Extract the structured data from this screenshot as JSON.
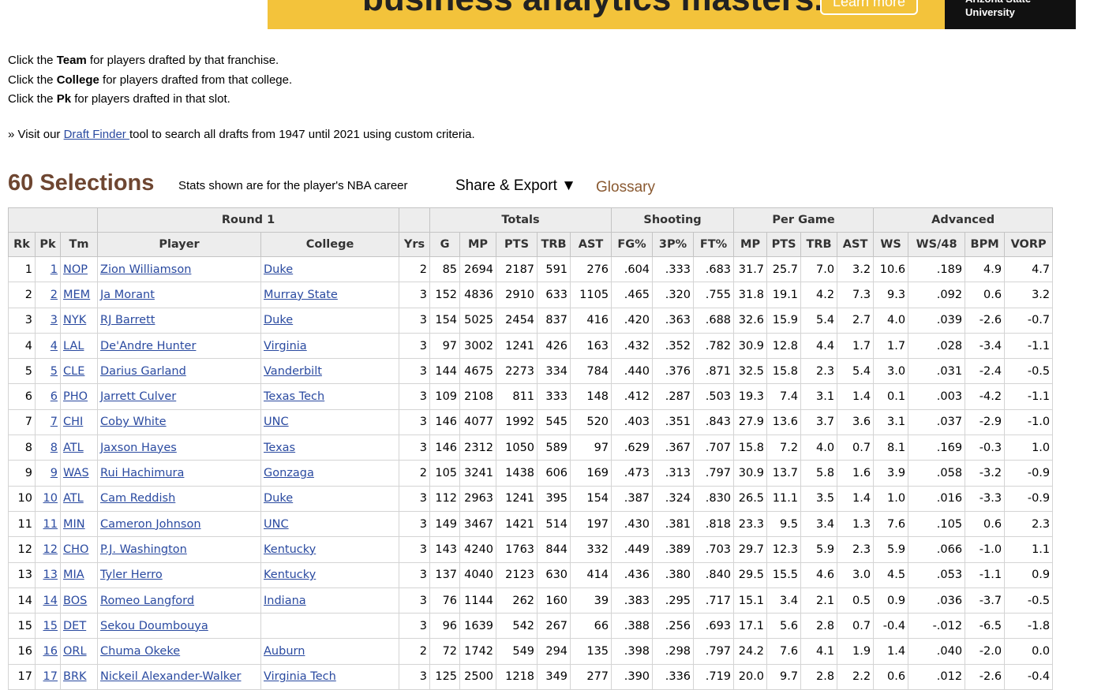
{
  "banner": {
    "headline": "business analytics masters.",
    "button": "Learn more",
    "university": "Arizona State University"
  },
  "instructions": [
    {
      "before": "Click the ",
      "bold": "Team",
      "after": " for players drafted by that franchise."
    },
    {
      "before": "Click the ",
      "bold": "College",
      "after": " for players drafted from that college."
    },
    {
      "before": "Click the ",
      "bold": "Pk",
      "after": " for players drafted in that slot."
    }
  ],
  "visit": {
    "prefix": "» Visit our ",
    "link": "Draft Finder ",
    "suffix": "tool to search all drafts from 1947 until 2021 using custom criteria."
  },
  "section": {
    "title": "60 Selections",
    "note": "Stats shown are for the player's NBA career",
    "share": "Share & Export ▼",
    "glossary": "Glossary"
  },
  "table": {
    "groups": [
      "Round 1",
      "Totals",
      "Shooting",
      "Per Game",
      "Advanced"
    ],
    "columns": [
      "Rk",
      "Pk",
      "Tm",
      "Player",
      "College",
      "Yrs",
      "G",
      "MP",
      "PTS",
      "TRB",
      "AST",
      "FG%",
      "3P%",
      "FT%",
      "MP",
      "PTS",
      "TRB",
      "AST",
      "WS",
      "WS/48",
      "BPM",
      "VORP"
    ],
    "rows": [
      [
        "1",
        "1",
        "NOP",
        "Zion Williamson",
        "Duke",
        "2",
        "85",
        "2694",
        "2187",
        "591",
        "276",
        ".604",
        ".333",
        ".683",
        "31.7",
        "25.7",
        "7.0",
        "3.2",
        "10.6",
        ".189",
        "4.9",
        "4.7"
      ],
      [
        "2",
        "2",
        "MEM",
        "Ja Morant",
        "Murray State",
        "3",
        "152",
        "4836",
        "2910",
        "633",
        "1105",
        ".465",
        ".320",
        ".755",
        "31.8",
        "19.1",
        "4.2",
        "7.3",
        "9.3",
        ".092",
        "0.6",
        "3.2"
      ],
      [
        "3",
        "3",
        "NYK",
        "RJ Barrett",
        "Duke",
        "3",
        "154",
        "5025",
        "2454",
        "837",
        "416",
        ".420",
        ".363",
        ".688",
        "32.6",
        "15.9",
        "5.4",
        "2.7",
        "4.0",
        ".039",
        "-2.6",
        "-0.7"
      ],
      [
        "4",
        "4",
        "LAL",
        "De'Andre Hunter",
        "Virginia",
        "3",
        "97",
        "3002",
        "1241",
        "426",
        "163",
        ".432",
        ".352",
        ".782",
        "30.9",
        "12.8",
        "4.4",
        "1.7",
        "1.7",
        ".028",
        "-3.4",
        "-1.1"
      ],
      [
        "5",
        "5",
        "CLE",
        "Darius Garland",
        "Vanderbilt",
        "3",
        "144",
        "4675",
        "2273",
        "334",
        "784",
        ".440",
        ".376",
        ".871",
        "32.5",
        "15.8",
        "2.3",
        "5.4",
        "3.0",
        ".031",
        "-2.4",
        "-0.5"
      ],
      [
        "6",
        "6",
        "PHO",
        "Jarrett Culver",
        "Texas Tech",
        "3",
        "109",
        "2108",
        "811",
        "333",
        "148",
        ".412",
        ".287",
        ".503",
        "19.3",
        "7.4",
        "3.1",
        "1.4",
        "0.1",
        ".003",
        "-4.2",
        "-1.1"
      ],
      [
        "7",
        "7",
        "CHI",
        "Coby White",
        "UNC",
        "3",
        "146",
        "4077",
        "1992",
        "545",
        "520",
        ".403",
        ".351",
        ".843",
        "27.9",
        "13.6",
        "3.7",
        "3.6",
        "3.1",
        ".037",
        "-2.9",
        "-1.0"
      ],
      [
        "8",
        "8",
        "ATL",
        "Jaxson Hayes",
        "Texas",
        "3",
        "146",
        "2312",
        "1050",
        "589",
        "97",
        ".629",
        ".367",
        ".707",
        "15.8",
        "7.2",
        "4.0",
        "0.7",
        "8.1",
        ".169",
        "-0.3",
        "1.0"
      ],
      [
        "9",
        "9",
        "WAS",
        "Rui Hachimura",
        "Gonzaga",
        "2",
        "105",
        "3241",
        "1438",
        "606",
        "169",
        ".473",
        ".313",
        ".797",
        "30.9",
        "13.7",
        "5.8",
        "1.6",
        "3.9",
        ".058",
        "-3.2",
        "-0.9"
      ],
      [
        "10",
        "10",
        "ATL",
        "Cam Reddish",
        "Duke",
        "3",
        "112",
        "2963",
        "1241",
        "395",
        "154",
        ".387",
        ".324",
        ".830",
        "26.5",
        "11.1",
        "3.5",
        "1.4",
        "1.0",
        ".016",
        "-3.3",
        "-0.9"
      ],
      [
        "11",
        "11",
        "MIN",
        "Cameron Johnson",
        "UNC",
        "3",
        "149",
        "3467",
        "1421",
        "514",
        "197",
        ".430",
        ".381",
        ".818",
        "23.3",
        "9.5",
        "3.4",
        "1.3",
        "7.6",
        ".105",
        "0.6",
        "2.3"
      ],
      [
        "12",
        "12",
        "CHO",
        "P.J. Washington",
        "Kentucky",
        "3",
        "143",
        "4240",
        "1763",
        "844",
        "332",
        ".449",
        ".389",
        ".703",
        "29.7",
        "12.3",
        "5.9",
        "2.3",
        "5.9",
        ".066",
        "-1.0",
        "1.1"
      ],
      [
        "13",
        "13",
        "MIA",
        "Tyler Herro",
        "Kentucky",
        "3",
        "137",
        "4040",
        "2123",
        "630",
        "414",
        ".436",
        ".380",
        ".840",
        "29.5",
        "15.5",
        "4.6",
        "3.0",
        "4.5",
        ".053",
        "-1.1",
        "0.9"
      ],
      [
        "14",
        "14",
        "BOS",
        "Romeo Langford",
        "Indiana",
        "3",
        "76",
        "1144",
        "262",
        "160",
        "39",
        ".383",
        ".295",
        ".717",
        "15.1",
        "3.4",
        "2.1",
        "0.5",
        "0.9",
        ".036",
        "-3.7",
        "-0.5"
      ],
      [
        "15",
        "15",
        "DET",
        "Sekou Doumbouya",
        null,
        "3",
        "96",
        "1639",
        "542",
        "267",
        "66",
        ".388",
        ".256",
        ".693",
        "17.1",
        "5.6",
        "2.8",
        "0.7",
        "-0.4",
        "-.012",
        "-6.5",
        "-1.8"
      ],
      [
        "16",
        "16",
        "ORL",
        "Chuma Okeke",
        "Auburn",
        "2",
        "72",
        "1742",
        "549",
        "294",
        "135",
        ".398",
        ".298",
        ".797",
        "24.2",
        "7.6",
        "4.1",
        "1.9",
        "1.4",
        ".040",
        "-2.0",
        "0.0"
      ],
      [
        "17",
        "17",
        "BRK",
        "Nickeil Alexander-Walker",
        "Virginia Tech",
        "3",
        "125",
        "2500",
        "1218",
        "349",
        "277",
        ".390",
        ".336",
        ".719",
        "20.0",
        "9.7",
        "2.8",
        "2.2",
        "0.6",
        ".012",
        "-2.6",
        "-0.4"
      ]
    ]
  }
}
